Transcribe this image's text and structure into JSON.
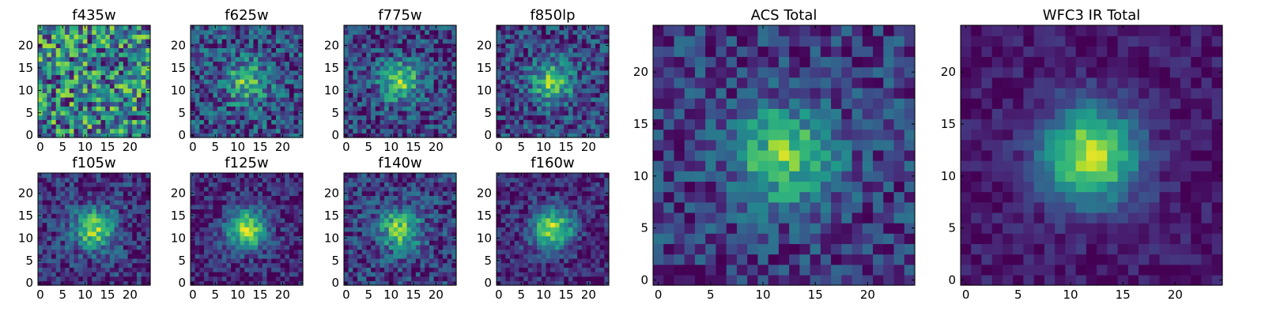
{
  "chart_data": [
    {
      "type": "heatmap",
      "title": "f435w",
      "xticks": [
        0,
        5,
        10,
        15,
        20
      ],
      "yticks": [
        0,
        5,
        10,
        15,
        20
      ],
      "xlim": [
        -0.5,
        24.5
      ],
      "ylim": [
        -0.5,
        24.5
      ],
      "grid": false,
      "colormap": "viridis",
      "peak": 0.0,
      "noise": 0.85,
      "seed": 11
    },
    {
      "type": "heatmap",
      "title": "f625w",
      "xticks": [
        0,
        5,
        10,
        15,
        20
      ],
      "yticks": [
        0,
        5,
        10,
        15,
        20
      ],
      "xlim": [
        -0.5,
        24.5
      ],
      "ylim": [
        -0.5,
        24.5
      ],
      "grid": false,
      "colormap": "viridis",
      "peak": 0.45,
      "noise": 0.55,
      "seed": 23
    },
    {
      "type": "heatmap",
      "title": "f775w",
      "xticks": [
        0,
        5,
        10,
        15,
        20
      ],
      "yticks": [
        0,
        5,
        10,
        15,
        20
      ],
      "xlim": [
        -0.5,
        24.5
      ],
      "ylim": [
        -0.5,
        24.5
      ],
      "grid": false,
      "colormap": "viridis",
      "peak": 0.55,
      "noise": 0.5,
      "seed": 37
    },
    {
      "type": "heatmap",
      "title": "f850lp",
      "xticks": [
        0,
        5,
        10,
        15,
        20
      ],
      "yticks": [
        0,
        5,
        10,
        15,
        20
      ],
      "xlim": [
        -0.5,
        24.5
      ],
      "ylim": [
        -0.5,
        24.5
      ],
      "grid": false,
      "colormap": "viridis",
      "peak": 0.55,
      "noise": 0.5,
      "seed": 41
    },
    {
      "type": "heatmap",
      "title": "f105w",
      "xticks": [
        0,
        5,
        10,
        15,
        20
      ],
      "yticks": [
        0,
        5,
        10,
        15,
        20
      ],
      "xlim": [
        -0.5,
        24.5
      ],
      "ylim": [
        -0.5,
        24.5
      ],
      "grid": false,
      "colormap": "viridis",
      "peak": 0.65,
      "noise": 0.4,
      "seed": 53
    },
    {
      "type": "heatmap",
      "title": "f125w",
      "xticks": [
        0,
        5,
        10,
        15,
        20
      ],
      "yticks": [
        0,
        5,
        10,
        15,
        20
      ],
      "xlim": [
        -0.5,
        24.5
      ],
      "ylim": [
        -0.5,
        24.5
      ],
      "grid": false,
      "colormap": "viridis",
      "peak": 0.75,
      "noise": 0.35,
      "seed": 67
    },
    {
      "type": "heatmap",
      "title": "f140w",
      "xticks": [
        0,
        5,
        10,
        15,
        20
      ],
      "yticks": [
        0,
        5,
        10,
        15,
        20
      ],
      "xlim": [
        -0.5,
        24.5
      ],
      "ylim": [
        -0.5,
        24.5
      ],
      "grid": false,
      "colormap": "viridis",
      "peak": 0.6,
      "noise": 0.45,
      "seed": 71
    },
    {
      "type": "heatmap",
      "title": "f160w",
      "xticks": [
        0,
        5,
        10,
        15,
        20
      ],
      "yticks": [
        0,
        5,
        10,
        15,
        20
      ],
      "xlim": [
        -0.5,
        24.5
      ],
      "ylim": [
        -0.5,
        24.5
      ],
      "grid": false,
      "colormap": "viridis",
      "peak": 0.75,
      "noise": 0.35,
      "seed": 83
    },
    {
      "type": "heatmap",
      "title": "ACS Total",
      "xticks": [
        0,
        5,
        10,
        15,
        20
      ],
      "yticks": [
        0,
        5,
        10,
        15,
        20
      ],
      "xlim": [
        -0.5,
        24.5
      ],
      "ylim": [
        -0.5,
        24.5
      ],
      "grid": false,
      "colormap": "viridis",
      "peak": 0.6,
      "noise": 0.4,
      "seed": 97
    },
    {
      "type": "heatmap",
      "title": "WFC3 IR Total",
      "xticks": [
        0,
        5,
        10,
        15,
        20
      ],
      "yticks": [
        0,
        5,
        10,
        15,
        20
      ],
      "xlim": [
        -0.5,
        24.5
      ],
      "ylim": [
        -0.5,
        24.5
      ],
      "grid": false,
      "colormap": "viridis",
      "peak": 0.85,
      "noise": 0.2,
      "seed": 101
    }
  ]
}
